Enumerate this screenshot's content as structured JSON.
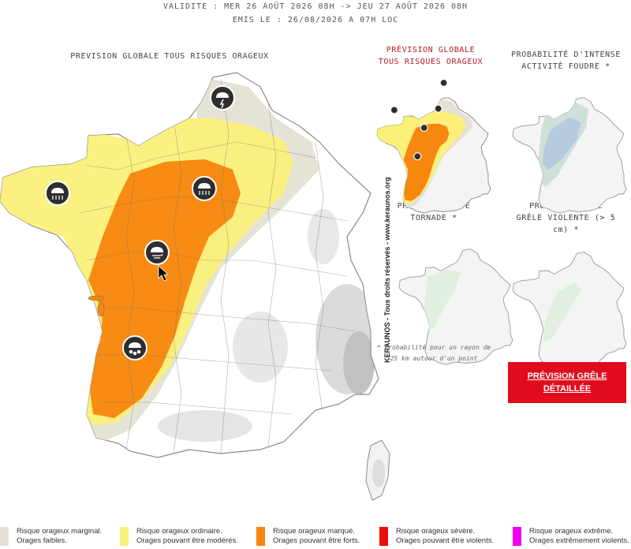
{
  "header": {
    "validity": "VALIDITE : MER 26 AOÛT 2026 08H -> JEU 27 AOÛT 2026 08H",
    "issued": "EMIS LE : 26/08/2026 A 07H LOC"
  },
  "main_map": {
    "title": "PREVISION GLOBALE TOUS RISQUES ORAGEUX",
    "icons": [
      "thunderstorm-icon",
      "rain-cloud-icon",
      "rain-cloud-icon",
      "wind-cloud-icon",
      "hail-cloud-icon"
    ]
  },
  "mini_maps": {
    "global": {
      "title_1": "PRÉVISION GLOBALE",
      "title_2": "TOUS RISQUES ORAGEUX"
    },
    "lightning": {
      "title_1": "PROBABILITÉ D'INTENSE",
      "title_2": "ACTIVITÉ FOUDRE *"
    },
    "tornado": {
      "title_1": "PROBABILITÉ DE",
      "title_2": "TORNADE *"
    },
    "hail": {
      "title_1": "PROBABILITÉ DE",
      "title_2": "GRÊLE VIOLENTE (> 5",
      "title_3": "cm) *"
    }
  },
  "credit": "KERAUNOS - Tous droits réservés - www.keraunos.org",
  "footnote": {
    "line_1": "* Probabilité pour un rayon de",
    "line_2": "25 km autour d'un point"
  },
  "button": {
    "line_1": "PRÉVISION GRÊLE",
    "line_2": "DÉTAILLÉE"
  },
  "legend": [
    {
      "title": "Risque orageux marginal.",
      "desc": "Orages faibles.",
      "color": "#e4e1d4"
    },
    {
      "title": "Risque orageux ordinaire.",
      "desc": "Orages pouvant être modérés.",
      "color": "#fbf07a"
    },
    {
      "title": "Risque orageux marqué.",
      "desc": "Orages pouvant être forts.",
      "color": "#f7870f"
    },
    {
      "title": "Risque orageux sévère.",
      "desc": "Orages pouvant être violents.",
      "color": "#ec0e0e"
    },
    {
      "title": "Risque orageux extrême.",
      "desc": "Orages extrêmement violents.",
      "color": "#f000f0"
    }
  ],
  "colors": {
    "marginal": "#e4e1d4",
    "ordinary": "#fbf07a",
    "marked": "#f7870f",
    "button": "#e00c1c"
  }
}
